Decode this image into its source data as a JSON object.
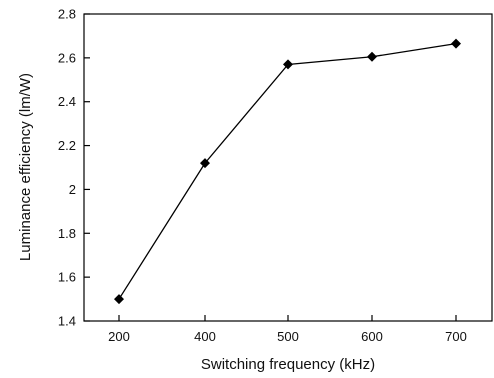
{
  "chart_data": {
    "type": "line",
    "title": "",
    "xlabel": "Switching frequency (kHz)",
    "ylabel": "Luminance efficiency (lm/W)",
    "x_ticks": [
      "200",
      "400",
      "500",
      "600",
      "700"
    ],
    "ylim": [
      1.4,
      2.8
    ],
    "y_ticks": [
      "1.4",
      "1.6",
      "1.8",
      "2",
      "2.2",
      "2.4",
      "2.6",
      "2.8"
    ],
    "series": [
      {
        "x": [
          200,
          400,
          500,
          600,
          700
        ],
        "y": [
          1.5,
          2.12,
          2.57,
          2.605,
          2.665
        ],
        "marker": "diamond",
        "color": "#000000"
      }
    ],
    "grid": false,
    "legend": "none"
  }
}
